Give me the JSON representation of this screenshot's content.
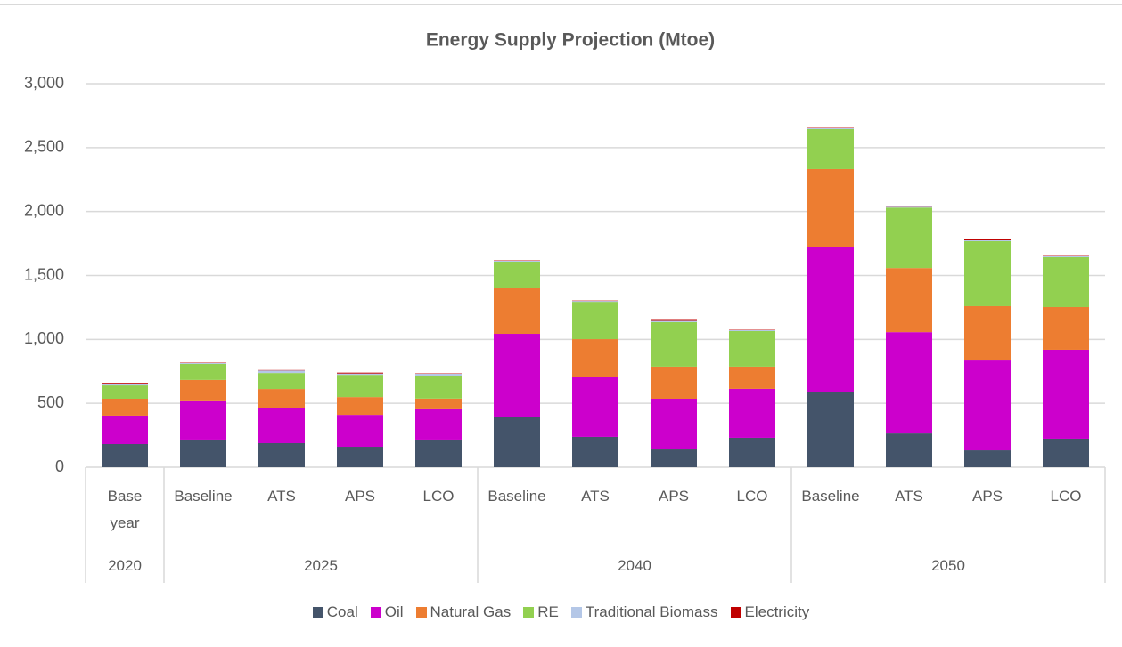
{
  "chart_data": {
    "type": "stacked_bar",
    "title": "Energy Supply Projection (Mtoe)",
    "groups": [
      {
        "name": "2020",
        "categories": [
          "Base year"
        ]
      },
      {
        "name": "2025",
        "categories": [
          "Baseline",
          "ATS",
          "APS",
          "LCO"
        ]
      },
      {
        "name": "2040",
        "categories": [
          "Baseline",
          "ATS",
          "APS",
          "LCO"
        ]
      },
      {
        "name": "2050",
        "categories": [
          "Baseline",
          "ATS",
          "APS",
          "LCO"
        ]
      }
    ],
    "series": [
      {
        "name": "Coal",
        "color": "#44546a",
        "values": [
          181,
          216,
          188,
          160,
          216,
          390,
          237,
          139,
          230,
          585,
          264,
          132,
          223
        ]
      },
      {
        "name": "Oil",
        "color": "#cc00cc",
        "values": [
          223,
          300,
          278,
          250,
          237,
          654,
          466,
          397,
          383,
          1141,
          793,
          703,
          696
        ]
      },
      {
        "name": "Natural Gas",
        "color": "#ed7d31",
        "values": [
          132,
          167,
          146,
          139,
          84,
          355,
          299,
          251,
          174,
          606,
          501,
          425,
          334
        ]
      },
      {
        "name": "RE",
        "color": "#92d050",
        "values": [
          104,
          125,
          125,
          174,
          174,
          209,
          292,
          348,
          278,
          313,
          473,
          508,
          390
        ]
      },
      {
        "name": "Traditional Biomass",
        "color": "#b4c7e7",
        "values": [
          10,
          7,
          20,
          10,
          20,
          7,
          7,
          10,
          7,
          7,
          7,
          7,
          7
        ]
      },
      {
        "name": "Electricity",
        "color": "#c00000",
        "values": [
          10,
          3,
          3,
          7,
          3,
          3,
          3,
          7,
          3,
          3,
          3,
          10,
          3
        ]
      }
    ],
    "ylim": [
      0,
      3000
    ],
    "yticks": [
      0,
      500,
      {
        "value": 1000,
        "label": "1,000"
      },
      {
        "value": 1500,
        "label": "1,500"
      },
      {
        "value": 2000,
        "label": "2,000"
      },
      {
        "value": 2500,
        "label": "2,500"
      },
      {
        "value": 3000,
        "label": "3,000"
      }
    ],
    "grid": true
  }
}
